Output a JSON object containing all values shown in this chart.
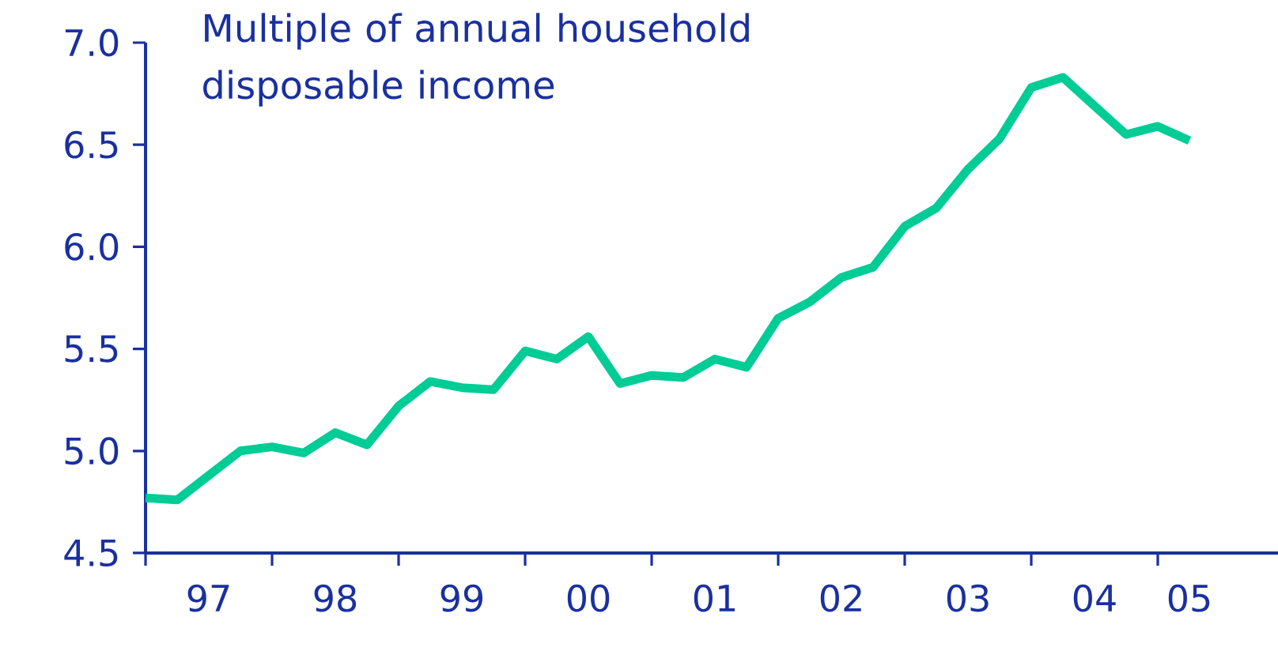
{
  "chart_data": {
    "type": "line",
    "title": "Multiple of annual household disposable income",
    "categories": [
      null,
      null,
      "97",
      null,
      null,
      null,
      "98",
      null,
      null,
      null,
      "99",
      null,
      null,
      null,
      "00",
      null,
      null,
      null,
      "01",
      null,
      null,
      null,
      "02",
      null,
      null,
      null,
      "03",
      null,
      null,
      null,
      "04",
      null,
      null,
      "05"
    ],
    "values": [
      4.77,
      4.76,
      4.88,
      5.0,
      5.02,
      4.99,
      5.09,
      5.03,
      5.22,
      5.34,
      5.31,
      5.3,
      5.49,
      5.45,
      5.56,
      5.33,
      5.37,
      5.36,
      5.45,
      5.41,
      5.65,
      5.73,
      5.85,
      5.9,
      6.1,
      6.19,
      6.38,
      6.53,
      6.78,
      6.83,
      6.69,
      6.55,
      6.59,
      6.52
    ],
    "color": "#00cc96",
    "line_style": "solid",
    "ylim": [
      4.5,
      7.0
    ],
    "yticks": [
      {
        "value": 4.5,
        "label": "4.5"
      },
      {
        "value": 5,
        "label": "5.0"
      },
      {
        "value": 5.5,
        "label": "5.5"
      },
      {
        "value": 6,
        "label": "6.0"
      },
      {
        "value": 6.5,
        "label": "6.5"
      },
      {
        "value": 7,
        "label": "7.0"
      }
    ]
  }
}
